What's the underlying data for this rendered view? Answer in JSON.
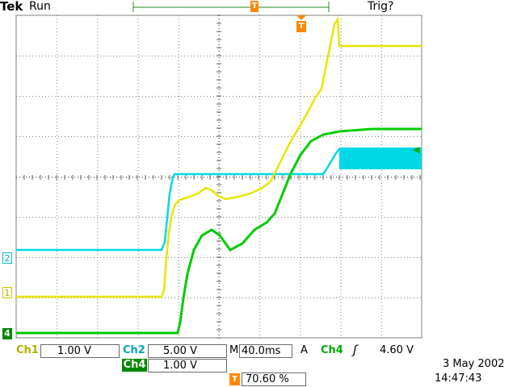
{
  "header": {
    "brand": "Tek",
    "run_state": "Run",
    "trigger_status": "Trig?",
    "trigger_position_marker": "T"
  },
  "channels": {
    "ch2_marker": "2",
    "ch1_marker": "1",
    "ch4_marker": "4",
    "trigger_level_marker": "◀"
  },
  "readouts": {
    "ch1_label": "Ch1",
    "ch1_scale": "1.00 V",
    "ch2_label": "Ch2",
    "ch2_scale": "5.00 V",
    "ch4_label": "Ch4",
    "ch4_scale": "1.00 V",
    "timebase_prefix": "M",
    "timebase": "40.0ms",
    "trigger_mode": "A",
    "trigger_source": "Ch4",
    "trigger_slope": "ʃ",
    "trigger_level": "4.60 V",
    "trigger_pos_marker": "T",
    "trigger_pos_percent": "70.60 %"
  },
  "timestamp": {
    "date": "3 May 2002",
    "time": "14:47:43"
  },
  "colors": {
    "ch1": "#e6e600",
    "ch2": "#00d8e8",
    "ch4": "#00cc00",
    "trigger": "#ff8800",
    "ch4_box": "#008800"
  }
}
